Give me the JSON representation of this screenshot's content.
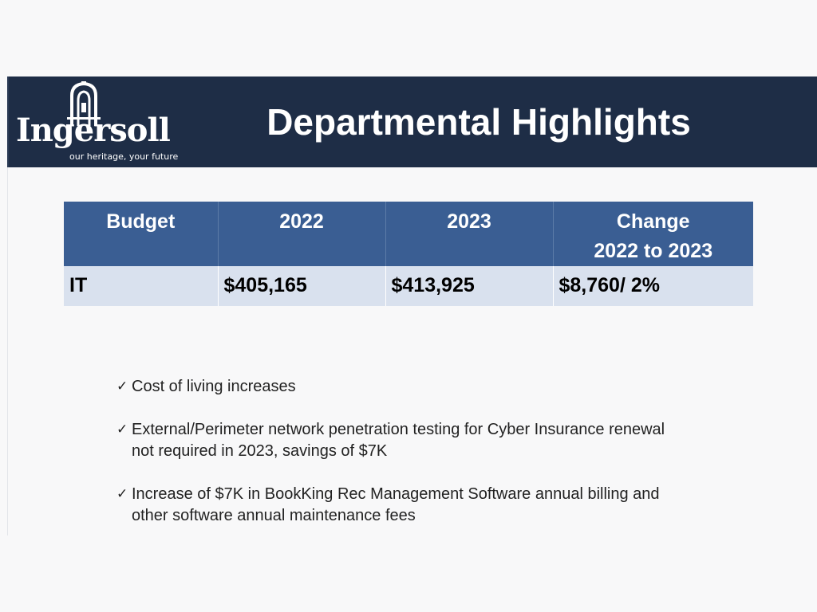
{
  "header": {
    "title": "Departmental Highlights",
    "background_color": "#1e2d46"
  },
  "logo": {
    "wordmark": "Ingersoll",
    "tagline": "our heritage, your future"
  },
  "table": {
    "header_color": "#3a5e93",
    "row_color": "#d9e1ee",
    "headers": [
      "Budget",
      "2022",
      "2023",
      "Change 2022 to 2023"
    ],
    "change_header_line1": "Change",
    "change_header_line2": "2022 to 2023",
    "rows": [
      {
        "budget": "IT",
        "y2022": "$405,165",
        "y2023": "$413,925",
        "change": "$8,760/ 2%"
      }
    ]
  },
  "bullets": [
    "Cost of living increases",
    "External/Perimeter network penetration testing for Cyber Insurance renewal not required in 2023, savings of $7K",
    "Increase of $7K in BookKing Rec Management Software annual billing and other software annual maintenance fees"
  ],
  "bullet_icon": "checkmark-icon"
}
